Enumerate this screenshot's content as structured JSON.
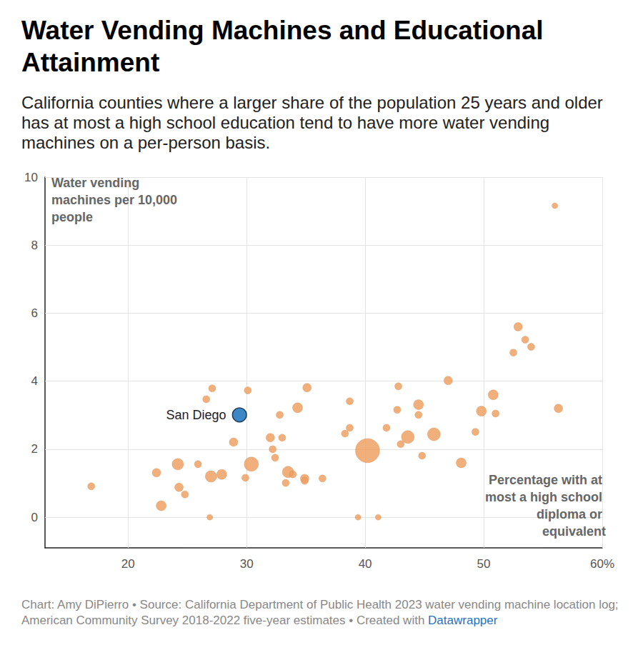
{
  "chart_data": {
    "type": "scatter",
    "title": "Water Vending Machines and Educational Attainment",
    "subtitle": "California counties where a larger share of the population 25 years and older has at most a high school education tend to have more water vending machines on a per-person basis.",
    "source": "Chart: Amy DiPierro • Source: California Department of Public Health 2023 water vending machine location log; American Community Survey 2018-2022 five-year estimates • Created with",
    "source_link": "Datawrapper",
    "x_label": "Percentage with at most a high school diploma or equivalent",
    "y_label": "Water vending machines per 10,000 people",
    "x": [
      16.9,
      22.4,
      22.8,
      24.2,
      24.3,
      24.8,
      25.9,
      26.6,
      27.1,
      26.9,
      27.0,
      27.9,
      28.9,
      29.9,
      30.1,
      30.4,
      29.4,
      32.0,
      32.2,
      32.4,
      32.8,
      33.0,
      33.3,
      33.5,
      33.9,
      34.3,
      34.9,
      34.9,
      35.1,
      36.4,
      38.3,
      38.7,
      38.7,
      39.4,
      40.2,
      41.1,
      41.8,
      42.7,
      42.8,
      43.0,
      43.6,
      44.5,
      44.5,
      44.8,
      45.8,
      47.0,
      48.1,
      49.3,
      49.8,
      50.8,
      51.0,
      52.5,
      52.9,
      53.5,
      54.0,
      56.0,
      56.3
    ],
    "values": [
      0.91,
      1.31,
      0.34,
      1.56,
      0.88,
      0.67,
      1.56,
      3.47,
      3.79,
      0,
      1.2,
      1.26,
      2.21,
      1.16,
      3.73,
      1.56,
      3.01,
      2.34,
      2.0,
      1.75,
      3.01,
      2.34,
      1.01,
      1.33,
      1.26,
      3.22,
      1.14,
      1.07,
      3.81,
      1.14,
      2.46,
      2.63,
      3.41,
      0,
      1.96,
      0,
      2.63,
      3.16,
      3.85,
      2.15,
      2.36,
      3.31,
      3.01,
      1.81,
      2.44,
      4.02,
      1.6,
      2.51,
      3.12,
      3.6,
      3.05,
      4.84,
      5.6,
      5.22,
      5.01,
      9.16,
      3.2
    ],
    "sizes": [
      0.86,
      1.23,
      1.68,
      2.19,
      1.23,
      0.86,
      0.86,
      0.86,
      0.86,
      0.55,
      2.19,
      1.68,
      1.23,
      0.86,
      0.86,
      3.43,
      3.3,
      1.23,
      0.86,
      0.86,
      0.86,
      0.86,
      0.86,
      2.19,
      0.86,
      1.68,
      1.23,
      0.86,
      1.23,
      0.86,
      0.86,
      0.86,
      0.86,
      0.55,
      9.8,
      0.55,
      0.86,
      0.86,
      0.86,
      0.86,
      2.78,
      1.68,
      0.86,
      0.86,
      2.78,
      1.23,
      1.68,
      0.86,
      1.68,
      1.68,
      0.86,
      0.86,
      1.23,
      0.86,
      0.86,
      0.55,
      1.23
    ],
    "colors": [
      "#ee9e5f",
      "#ee9e5f",
      "#ee9e5f",
      "#ee9e5f",
      "#ee9e5f",
      "#ee9e5f",
      "#ee9e5f",
      "#ee9e5f",
      "#ee9e5f",
      "#ee9e5f",
      "#ee9e5f",
      "#ee9e5f",
      "#ee9e5f",
      "#ee9e5f",
      "#ee9e5f",
      "#ee9e5f",
      "#3e87c7",
      "#ee9e5f",
      "#ee9e5f",
      "#ee9e5f",
      "#ee9e5f",
      "#ee9e5f",
      "#ee9e5f",
      "#ee9e5f",
      "#ee9e5f",
      "#ee9e5f",
      "#ee9e5f",
      "#ee9e5f",
      "#ee9e5f",
      "#ee9e5f",
      "#ee9e5f",
      "#ee9e5f",
      "#ee9e5f",
      "#ee9e5f",
      "#ee9e5f",
      "#ee9e5f",
      "#ee9e5f",
      "#ee9e5f",
      "#ee9e5f",
      "#ee9e5f",
      "#ee9e5f",
      "#ee9e5f",
      "#ee9e5f",
      "#ee9e5f",
      "#ee9e5f",
      "#ee9e5f",
      "#ee9e5f",
      "#ee9e5f",
      "#ee9e5f",
      "#ee9e5f",
      "#ee9e5f",
      "#ee9e5f",
      "#ee9e5f",
      "#ee9e5f",
      "#ee9e5f",
      "#ee9e5f",
      "#ee9e5f"
    ],
    "labels": [
      null,
      null,
      null,
      null,
      null,
      null,
      null,
      null,
      null,
      null,
      null,
      null,
      null,
      null,
      null,
      null,
      "San Diego",
      null,
      null,
      null,
      null,
      null,
      null,
      null,
      null,
      null,
      null,
      null,
      null,
      null,
      null,
      null,
      null,
      null,
      null,
      null,
      null,
      null,
      null,
      null,
      null,
      null,
      null,
      null,
      null,
      null,
      null,
      null,
      null,
      null,
      null,
      null,
      null,
      null,
      null,
      null,
      null
    ],
    "xlim": [
      13,
      60
    ],
    "xticks": [
      20,
      30,
      40,
      50,
      {
        "value": 60,
        "label": "60%"
      }
    ],
    "ylim": [
      -0.9,
      10
    ],
    "yticks": [
      0,
      2,
      4,
      6,
      8,
      10
    ],
    "grid": true
  }
}
